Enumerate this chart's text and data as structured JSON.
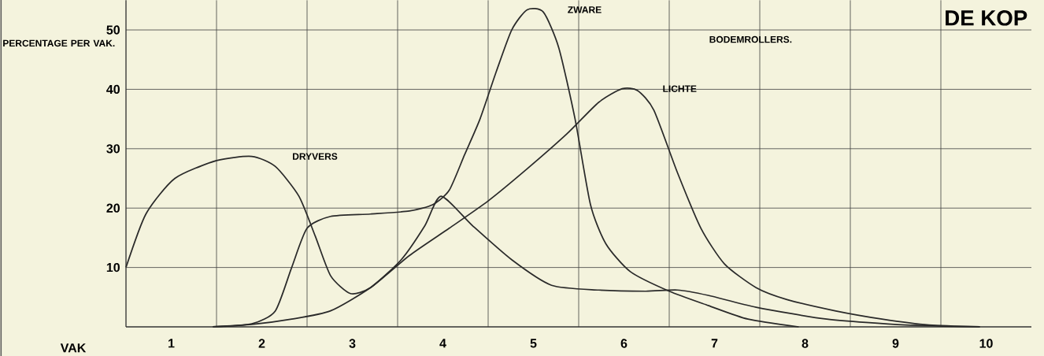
{
  "chart_data": {
    "type": "line",
    "title": "DE KOP",
    "xlabel": "VAK",
    "ylabel": "PERCENTAGE PER VAK.",
    "xlim": [
      0.5,
      10.5
    ],
    "xticks": [
      1,
      2,
      3,
      4,
      5,
      6,
      7,
      8,
      9,
      10
    ],
    "ylim": [
      0,
      55
    ],
    "yticks": [
      10,
      20,
      30,
      40,
      50
    ],
    "grid": true,
    "legend": false,
    "annotations": [
      "BODEMROLLERS."
    ],
    "series": [
      {
        "name": "DRYVERS",
        "color": "#2a2a2a",
        "x": [
          0.5,
          0.72,
          1.04,
          1.5,
          1.89,
          2.15,
          2.41,
          2.59,
          2.76,
          2.98,
          3.2,
          3.54,
          3.8,
          3.98,
          4.33,
          4.76,
          5.2,
          5.72,
          6.24,
          6.59,
          6.93,
          7.46,
          8.24,
          9.11,
          9.93
        ],
        "values": [
          10,
          19,
          25,
          28,
          28.7,
          27,
          22,
          15.3,
          8.6,
          5.6,
          6.6,
          11.3,
          17,
          22,
          17,
          11.3,
          7,
          6.2,
          6,
          6.2,
          5.3,
          3.3,
          1.3,
          0.3,
          0
        ]
      },
      {
        "name": "ZWARE",
        "color": "#2a2a2a",
        "x": [
          1.46,
          1.89,
          2.15,
          2.33,
          2.5,
          2.76,
          3.2,
          3.63,
          3.89,
          4.07,
          4.24,
          4.41,
          4.59,
          4.76,
          4.93,
          5.11,
          5.28,
          5.46,
          5.63,
          5.8,
          6.07,
          6.5,
          6.93,
          7.37,
          7.93
        ],
        "values": [
          0,
          0.5,
          2.7,
          10,
          16.6,
          18.6,
          19,
          19.5,
          20.6,
          23,
          29,
          35,
          43,
          50,
          53.4,
          53,
          47,
          35,
          20.6,
          14,
          9.3,
          6,
          3.6,
          1.3,
          0
        ]
      },
      {
        "name": "LICHTE",
        "color": "#2a2a2a",
        "x": [
          1.46,
          1.89,
          2.33,
          2.76,
          3.2,
          3.63,
          4.07,
          4.5,
          4.93,
          5.37,
          5.72,
          5.98,
          6.15,
          6.33,
          6.59,
          6.85,
          7.11,
          7.46,
          7.8,
          8.33,
          8.85,
          9.37,
          9.93
        ],
        "values": [
          0,
          0.4,
          1.3,
          2.7,
          6.6,
          12,
          16.6,
          21.2,
          26.6,
          32.5,
          37.8,
          40.1,
          39.8,
          36.5,
          26,
          16.6,
          10.6,
          6.6,
          4.6,
          2.7,
          1.3,
          0.3,
          0
        ]
      }
    ]
  }
}
